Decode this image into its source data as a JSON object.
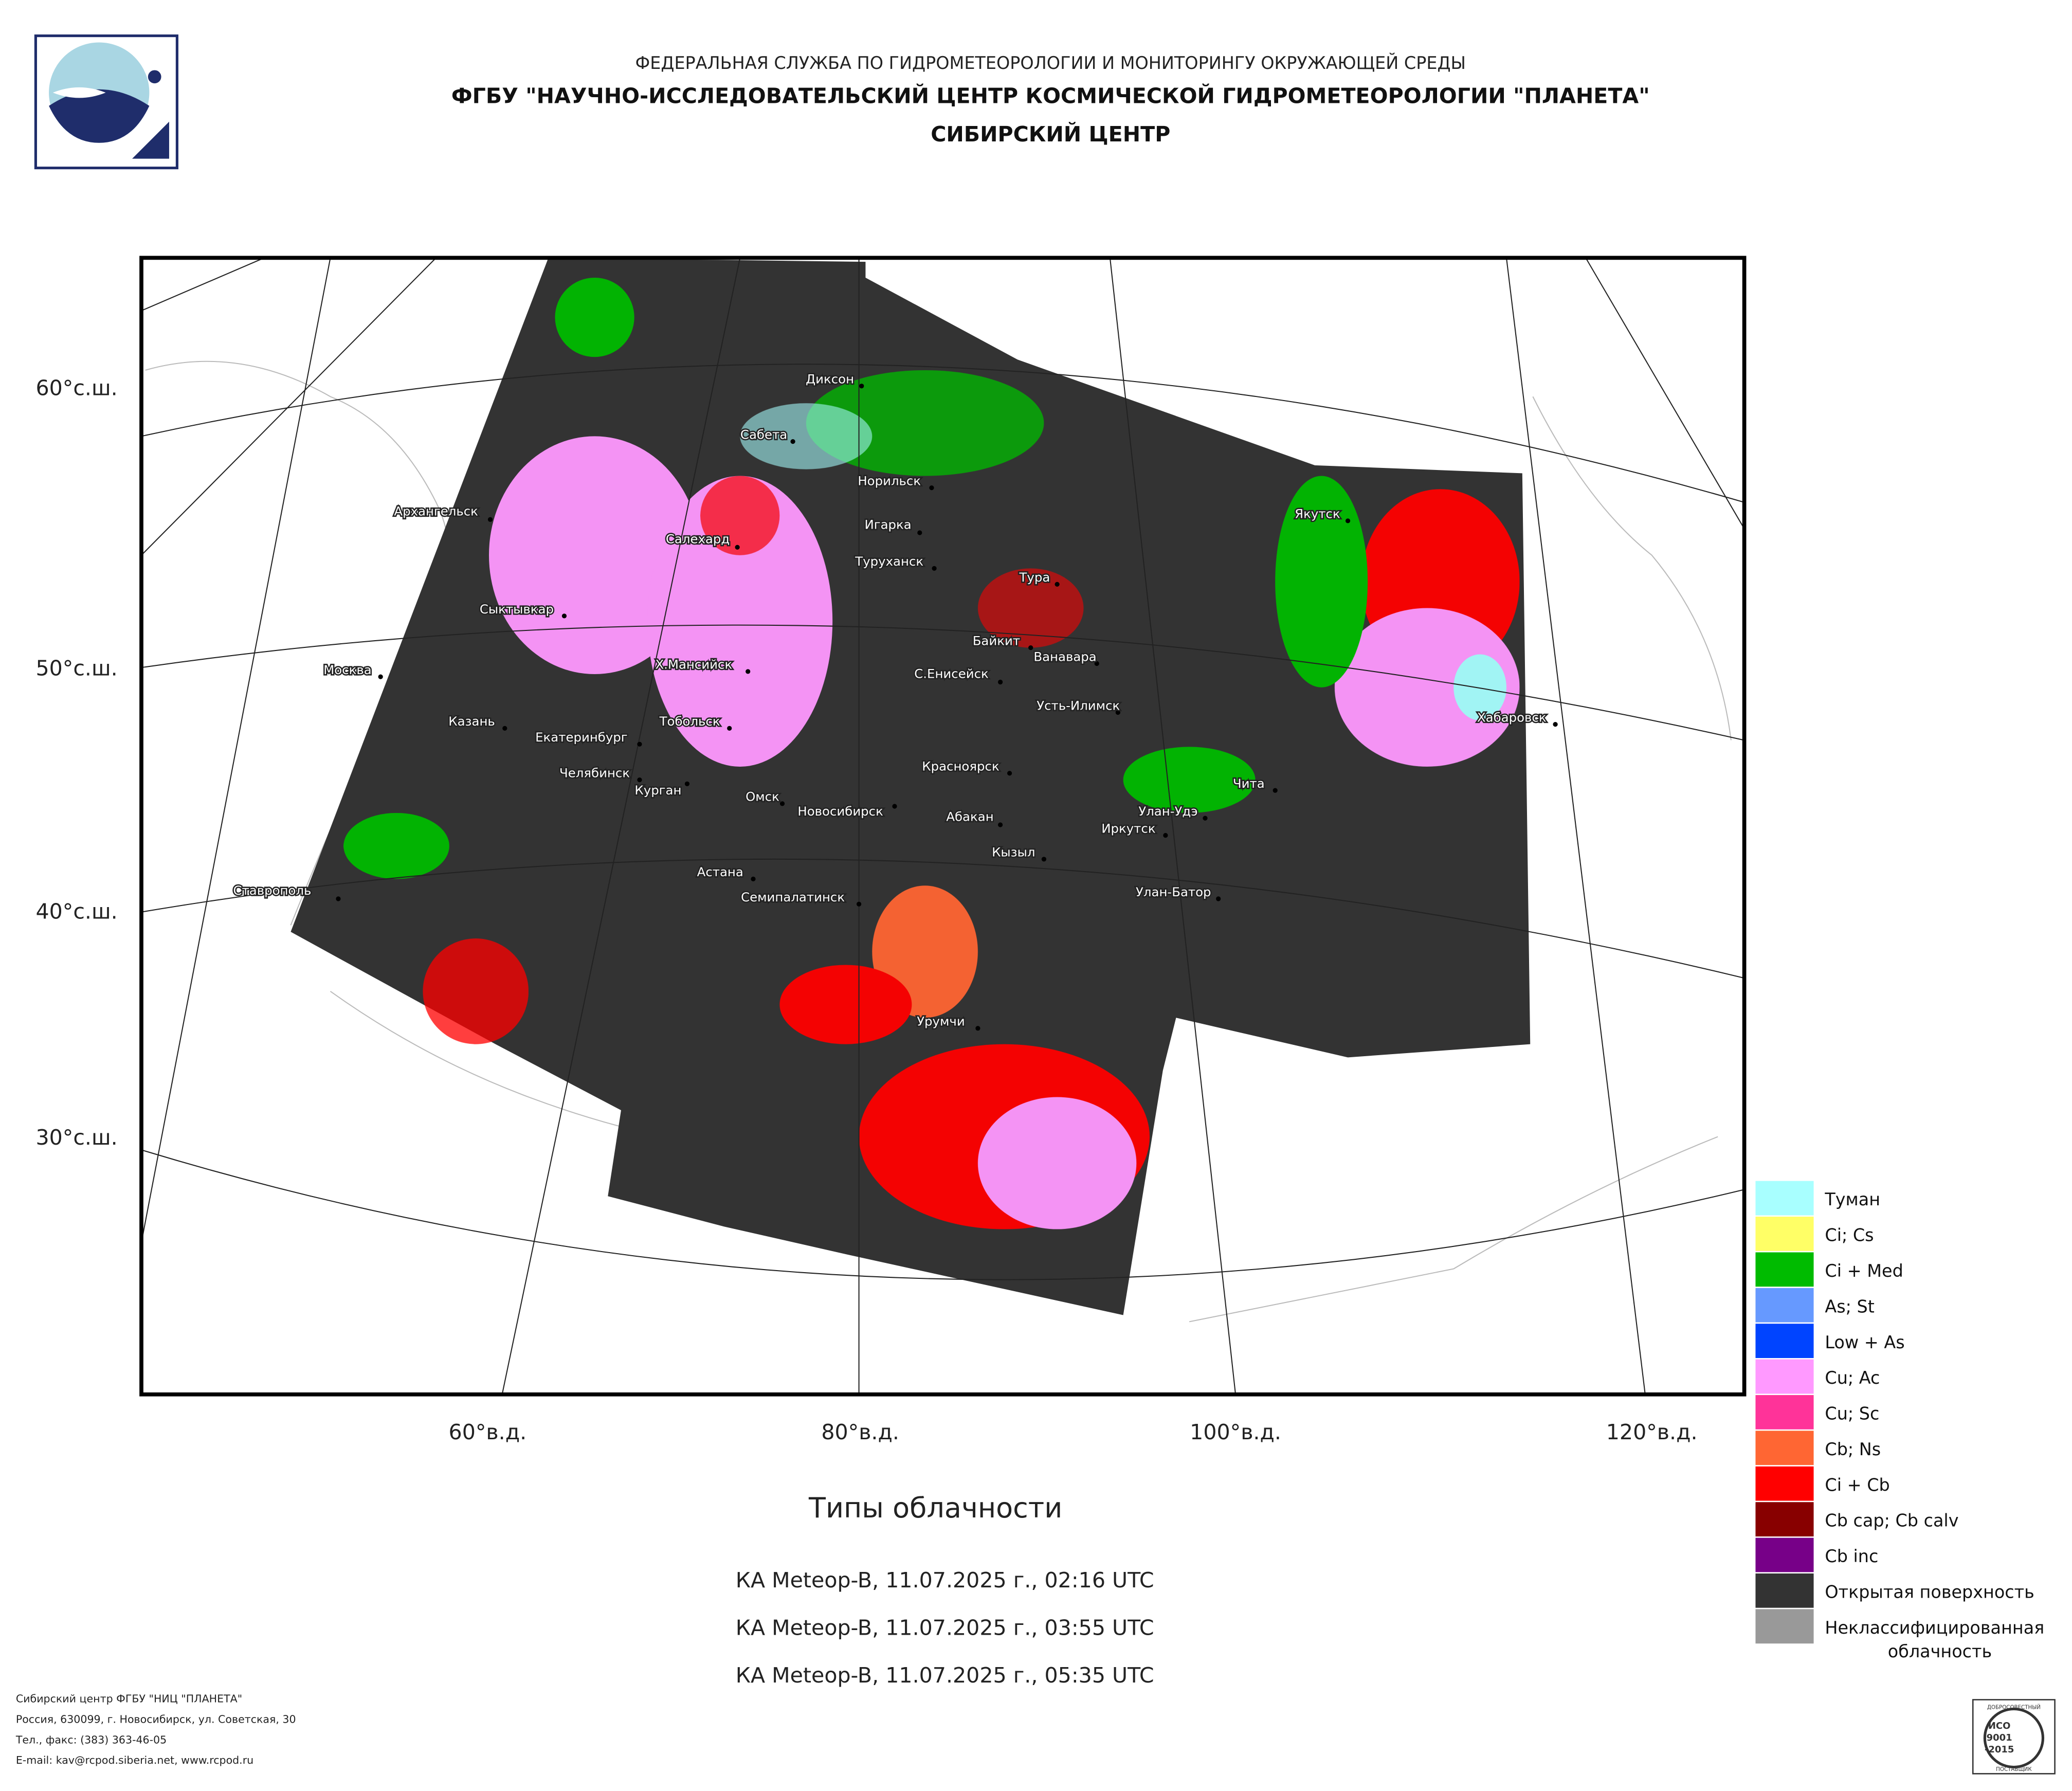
{
  "header": {
    "agency": "ФЕДЕРАЛЬНАЯ СЛУЖБА ПО ГИДРОМЕТЕОРОЛОГИИ И МОНИТОРИНГУ ОКРУЖАЮЩЕЙ СРЕДЫ",
    "center": "ФГБУ \"НАУЧНО-ИССЛЕДОВАТЕЛЬСКИЙ ЦЕНТР КОСМИЧЕСКОЙ ГИДРОМЕТЕОРОЛОГИИ \"ПЛАНЕТА\"",
    "branch": "СИБИРСКИЙ ЦЕНТР"
  },
  "map": {
    "lat_labels": [
      "60°с.ш.",
      "50°с.ш.",
      "40°с.ш.",
      "30°с.ш."
    ],
    "lon_labels": [
      "60°в.д.",
      "80°в.д.",
      "100°в.д.",
      "120°в.д."
    ],
    "cities": [
      "Диксон",
      "Сабета",
      "Норильск",
      "Архангельск",
      "Салехард",
      "Игарка",
      "Туруханск",
      "Тура",
      "Якутск",
      "Сыктывкар",
      "Байкит",
      "Ванавара",
      "Москва",
      "Х.Мансийск",
      "С.Енисейск",
      "Усть-Илимск",
      "Хабаровск",
      "Казань",
      "Екатеринбург",
      "Тобольск",
      "Челябинск",
      "Курган",
      "Красноярск",
      "Чита",
      "Омск",
      "Новосибирск",
      "Улан-Удэ",
      "Абакан",
      "Иркутск",
      "Кызыл",
      "Ставрополь",
      "Астана",
      "Семипалатинск",
      "Улан-Батор",
      "Урумчи"
    ]
  },
  "legend": {
    "items": [
      {
        "label": "Туман",
        "color": "#a8ffff"
      },
      {
        "label": "Ci; Cs",
        "color": "#ffff66"
      },
      {
        "label": "Ci + Med",
        "color": "#00bb00"
      },
      {
        "label": "As; St",
        "color": "#6699ff"
      },
      {
        "label": "Low + As",
        "color": "#0044ff"
      },
      {
        "label": "Cu; Ac",
        "color": "#ff99ff"
      },
      {
        "label": "Cu; Sc",
        "color": "#ff3399"
      },
      {
        "label": "Cb; Ns",
        "color": "#ff6633"
      },
      {
        "label": "Ci + Cb",
        "color": "#ff0000"
      },
      {
        "label": "Cb cap; Cb calv",
        "color": "#880000"
      },
      {
        "label": "Cb inc",
        "color": "#770088"
      },
      {
        "label": "Открытая поверхность",
        "color": "#333333"
      },
      {
        "label": "Неклассифицированная",
        "label_2": "облачность",
        "color": "#999999"
      }
    ]
  },
  "caption": {
    "title": "Типы облачности",
    "passes": [
      "КА Meteop-B, 11.07.2025 г., 02:16 UTC",
      "КА Meteop-B, 11.07.2025 г., 03:55 UTC",
      "КА Meteop-B, 11.07.2025 г., 05:35 UTC"
    ]
  },
  "footer": {
    "lines": [
      "Сибирский центр ФГБУ \"НИЦ \"ПЛАНЕТА\"",
      "Россия, 630099, г. Новосибирск, ул. Советская, 30",
      "Тел., факс: (383) 363-46-05",
      "E-mail: kav@rcpod.siberia.net, www.rcpod.ru"
    ]
  },
  "certificate": {
    "top": "ДОБРОСОВЕСТНЫЙ",
    "standard": "ИСО",
    "number": "9001",
    "year": "-2015",
    "bottom": "ПОСТАВЩИК"
  }
}
